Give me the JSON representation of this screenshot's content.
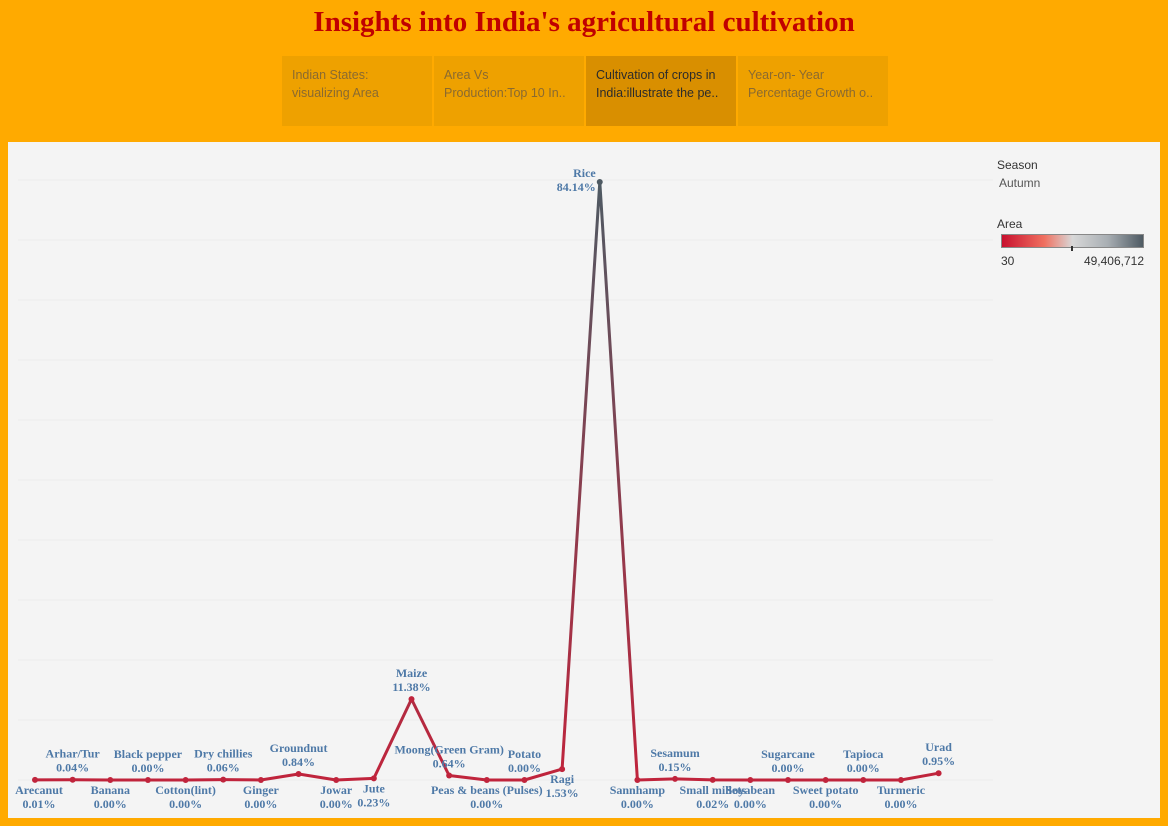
{
  "title": "Insights into India's agricultural cultivation",
  "tabs": [
    {
      "line1": "Indian States:",
      "line2": "visualizing Area",
      "active": false
    },
    {
      "line1": "Area Vs",
      "line2": "Production:Top 10 In..",
      "active": false
    },
    {
      "line1": "Cultivation of crops in",
      "line2": "India:illustrate the pe..",
      "active": true
    },
    {
      "line1": "Year-on- Year",
      "line2": "Percentage Growth o..",
      "active": false
    }
  ],
  "legend": {
    "season_title": "Season",
    "season_value": "Autumn",
    "area_title": "Area",
    "area_min": "30",
    "area_max": "49,406,712",
    "colors": [
      "#C8102E",
      "#F07060",
      "#D8D8D8",
      "#A8AEB3",
      "#4E5A63"
    ]
  },
  "chart_data": {
    "type": "line",
    "title": "",
    "xlabel": "",
    "ylabel": "",
    "ylim": [
      0,
      90
    ],
    "grid": true,
    "categories": [
      "Arecanut",
      "Arhar/Tur",
      "Banana",
      "Black pepper",
      "Cotton(lint)",
      "Dry chillies",
      "Ginger",
      "Groundnut",
      "Jowar",
      "Jute",
      "Maize",
      "Moong(Green Gram)",
      "Peas & beans (Pulses)",
      "Potato",
      "Ragi",
      "Rice",
      "Sannhamp",
      "Sesamum",
      "Small millets",
      "Soyabean",
      "Sugarcane",
      "Sweet potato",
      "Tapioca",
      "Turmeric",
      "Urad"
    ],
    "values": [
      0.01,
      0.04,
      0.0,
      0.0,
      0.0,
      0.06,
      0.0,
      0.84,
      0.0,
      0.23,
      11.38,
      0.64,
      0.0,
      0.0,
      1.53,
      84.14,
      0.0,
      0.15,
      0.02,
      0.0,
      0.0,
      0.0,
      0.0,
      0.0,
      0.95
    ],
    "labels": [
      "0.01%",
      "0.04%",
      "0.00%",
      "0.00%",
      "0.00%",
      "0.06%",
      "0.00%",
      "0.84%",
      "0.00%",
      "0.23%",
      "11.38%",
      "0.64%",
      "0.00%",
      "0.00%",
      "1.53%",
      "84.14%",
      "0.00%",
      "0.15%",
      "0.02%",
      "0.00%",
      "0.00%",
      "0.00%",
      "0.00%",
      "0.00%",
      "0.95%"
    ],
    "label_position": [
      "below",
      "above",
      "below",
      "above",
      "below",
      "above",
      "below",
      "above",
      "below",
      "below",
      "above",
      "above",
      "below",
      "above",
      "below",
      "above",
      "below",
      "above",
      "below",
      "below",
      "above",
      "below",
      "above",
      "below",
      "above"
    ],
    "line_colors": {
      "low": "#C0243C",
      "high": "#4E5A63"
    }
  }
}
